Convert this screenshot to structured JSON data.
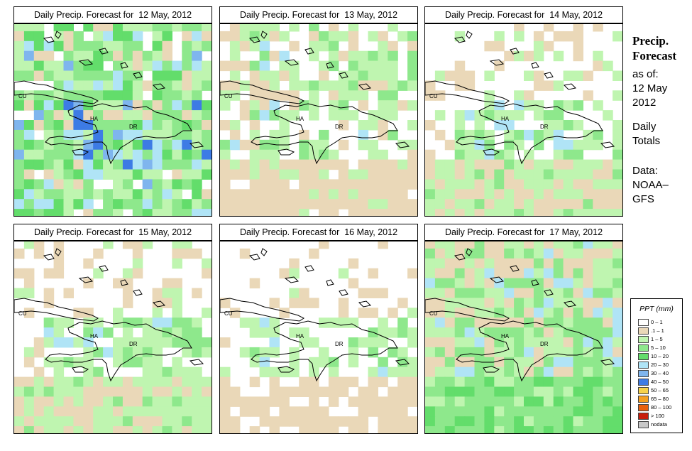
{
  "panels": [
    {
      "title": "Daily Precip. Forecast for  12 May, 2012",
      "seed": 11,
      "profile": "wet"
    },
    {
      "title": "Daily Precip. Forecast for  13 May, 2012",
      "seed": 23,
      "profile": "moderate"
    },
    {
      "title": "Daily Precip. Forecast for  14 May, 2012",
      "seed": 37,
      "profile": "dry"
    },
    {
      "title": "Daily Precip. Forecast for  15 May, 2012",
      "seed": 41,
      "profile": "dry"
    },
    {
      "title": "Daily Precip. Forecast for  16 May, 2012",
      "seed": 53,
      "profile": "verydry"
    },
    {
      "title": "Daily Precip. Forecast for  17 May, 2012",
      "seed": 67,
      "profile": "south"
    }
  ],
  "map_labels": {
    "cuba": "CU",
    "haiti": "HA",
    "dominican_republic": "DR"
  },
  "side": {
    "heading_1": "Precip.",
    "heading_2": "Forecast",
    "as_of": "as of:",
    "date_1": "12 May",
    "date_2": "2012",
    "daily": "Daily",
    "totals": "Totals",
    "data_1": "Data:",
    "data_2": "NOAA–",
    "data_3": "GFS"
  },
  "legend": {
    "title": "PPT (mm)",
    "items": [
      {
        "label": "0 – 1",
        "color": "#ffffff"
      },
      {
        "label": ".1 – 1",
        "color": "#ead8b8"
      },
      {
        "label": "1 – 5",
        "color": "#bff5b0"
      },
      {
        "label": "5 – 10",
        "color": "#8ee88c"
      },
      {
        "label": "10 – 20",
        "color": "#63dd6b"
      },
      {
        "label": "20 – 30",
        "color": "#b0e4f6"
      },
      {
        "label": "30 – 40",
        "color": "#7fb5ee"
      },
      {
        "label": "40 – 50",
        "color": "#3d7be5"
      },
      {
        "label": "50 – 65",
        "color": "#f6d24a"
      },
      {
        "label": "65 – 80",
        "color": "#f5a020"
      },
      {
        "label": "80 – 100",
        "color": "#e8600e"
      },
      {
        "label": "> 100",
        "color": "#c81e0c"
      },
      {
        "label": "nodata",
        "color": "#c8c8c8"
      }
    ]
  }
}
